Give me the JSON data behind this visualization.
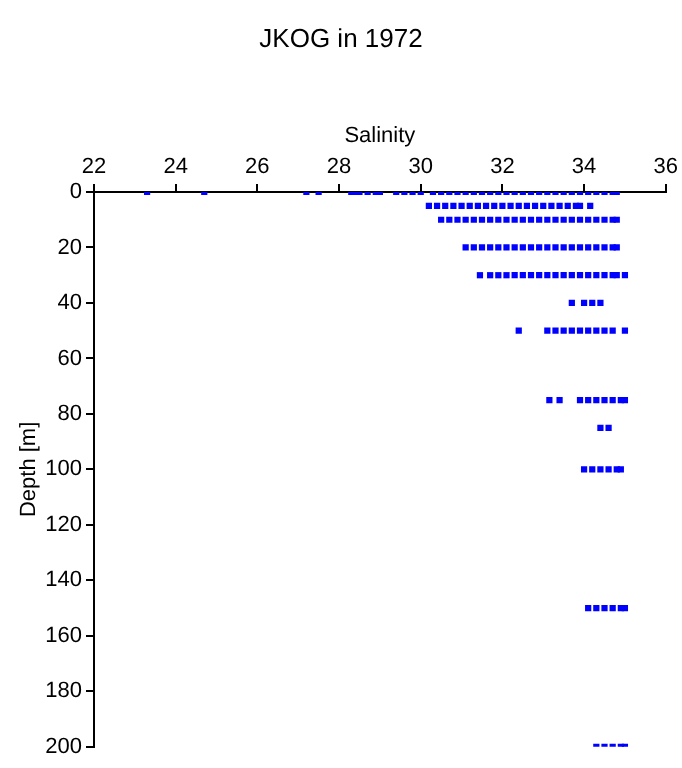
{
  "chart_data": {
    "type": "scatter",
    "title": "JKOG in 1972",
    "xlabel": "Salinity",
    "ylabel": "Depth [m]",
    "xlim": [
      22,
      36
    ],
    "xticks": [
      22,
      24,
      26,
      28,
      30,
      32,
      34,
      36
    ],
    "ylim": [
      200,
      0
    ],
    "yticks": [
      0,
      20,
      40,
      60,
      80,
      100,
      120,
      140,
      160,
      180,
      200
    ],
    "grid": false,
    "marker": "square",
    "series": [
      {
        "color": "#0000ff",
        "x": [
          23.3,
          24.7,
          27.2,
          27.5,
          28.3,
          28.4,
          28.5,
          28.7,
          28.9,
          29.0,
          29.4,
          29.6,
          29.8,
          30.0,
          30.3,
          30.5,
          30.7,
          30.9,
          31.1,
          31.3,
          31.5,
          31.7,
          31.9,
          32.1,
          32.3,
          32.5,
          32.7,
          32.9,
          33.1,
          33.3,
          33.5,
          33.7,
          33.9,
          34.1,
          34.3,
          34.5,
          34.7,
          34.8
        ],
        "values": [
          0,
          0,
          0,
          0,
          0,
          0,
          0,
          0,
          0,
          0,
          0,
          0,
          0,
          0,
          0,
          0,
          0,
          0,
          0,
          0,
          0,
          0,
          0,
          0,
          0,
          0,
          0,
          0,
          0,
          0,
          0,
          0,
          0,
          0,
          0,
          0,
          0,
          0
        ]
      },
      {
        "color": "#0000ff",
        "x": [
          30.2,
          30.4,
          30.6,
          30.8,
          31.0,
          31.2,
          31.4,
          31.6,
          31.8,
          32.0,
          32.2,
          32.4,
          32.6,
          32.8,
          33.0,
          33.2,
          33.4,
          33.6,
          33.8,
          33.9,
          34.15
        ],
        "values": [
          5,
          5,
          5,
          5,
          5,
          5,
          5,
          5,
          5,
          5,
          5,
          5,
          5,
          5,
          5,
          5,
          5,
          5,
          5,
          5,
          5
        ]
      },
      {
        "color": "#0000ff",
        "x": [
          30.5,
          30.7,
          30.9,
          31.1,
          31.3,
          31.5,
          31.7,
          31.9,
          32.1,
          32.3,
          32.5,
          32.7,
          32.9,
          33.1,
          33.3,
          33.5,
          33.7,
          33.9,
          34.1,
          34.3,
          34.5,
          34.7,
          34.8
        ],
        "values": [
          10,
          10,
          10,
          10,
          10,
          10,
          10,
          10,
          10,
          10,
          10,
          10,
          10,
          10,
          10,
          10,
          10,
          10,
          10,
          10,
          10,
          10,
          10
        ]
      },
      {
        "color": "#0000ff",
        "x": [
          31.1,
          31.3,
          31.5,
          31.7,
          31.9,
          32.1,
          32.3,
          32.5,
          32.7,
          32.9,
          33.1,
          33.3,
          33.5,
          33.7,
          33.9,
          34.1,
          34.3,
          34.5,
          34.7,
          34.8
        ],
        "values": [
          20,
          20,
          20,
          20,
          20,
          20,
          20,
          20,
          20,
          20,
          20,
          20,
          20,
          20,
          20,
          20,
          20,
          20,
          20,
          20
        ]
      },
      {
        "color": "#0000ff",
        "x": [
          31.45,
          31.7,
          31.9,
          32.1,
          32.3,
          32.5,
          32.7,
          32.9,
          33.1,
          33.3,
          33.5,
          33.7,
          33.9,
          34.1,
          34.3,
          34.5,
          34.7,
          34.8,
          35.0
        ],
        "values": [
          30,
          30,
          30,
          30,
          30,
          30,
          30,
          30,
          30,
          30,
          30,
          30,
          30,
          30,
          30,
          30,
          30,
          30,
          30
        ]
      },
      {
        "color": "#0000ff",
        "x": [
          33.7,
          34.0,
          34.2,
          34.4
        ],
        "values": [
          40,
          40,
          40,
          40
        ]
      },
      {
        "color": "#0000ff",
        "x": [
          32.4,
          33.1,
          33.3,
          33.5,
          33.7,
          33.9,
          34.1,
          34.3,
          34.5,
          34.7,
          35.0
        ],
        "values": [
          50,
          50,
          50,
          50,
          50,
          50,
          50,
          50,
          50,
          50,
          50
        ]
      },
      {
        "color": "#0000ff",
        "x": [
          33.15,
          33.4,
          33.9,
          34.1,
          34.3,
          34.5,
          34.7,
          34.9,
          35.0
        ],
        "values": [
          75,
          75,
          75,
          75,
          75,
          75,
          75,
          75,
          75
        ]
      },
      {
        "color": "#0000ff",
        "x": [
          34.4,
          34.6
        ],
        "values": [
          85,
          85
        ]
      },
      {
        "color": "#0000ff",
        "x": [
          34.0,
          34.2,
          34.4,
          34.6,
          34.8,
          34.9
        ],
        "values": [
          100,
          100,
          100,
          100,
          100,
          100
        ]
      },
      {
        "color": "#0000ff",
        "x": [
          34.1,
          34.3,
          34.5,
          34.7,
          34.9,
          35.0
        ],
        "values": [
          150,
          150,
          150,
          150,
          150,
          150
        ]
      },
      {
        "color": "#0000ff",
        "x": [
          34.3,
          34.5,
          34.7,
          34.9,
          35.0
        ],
        "values": [
          200,
          200,
          200,
          200,
          200
        ]
      }
    ]
  }
}
